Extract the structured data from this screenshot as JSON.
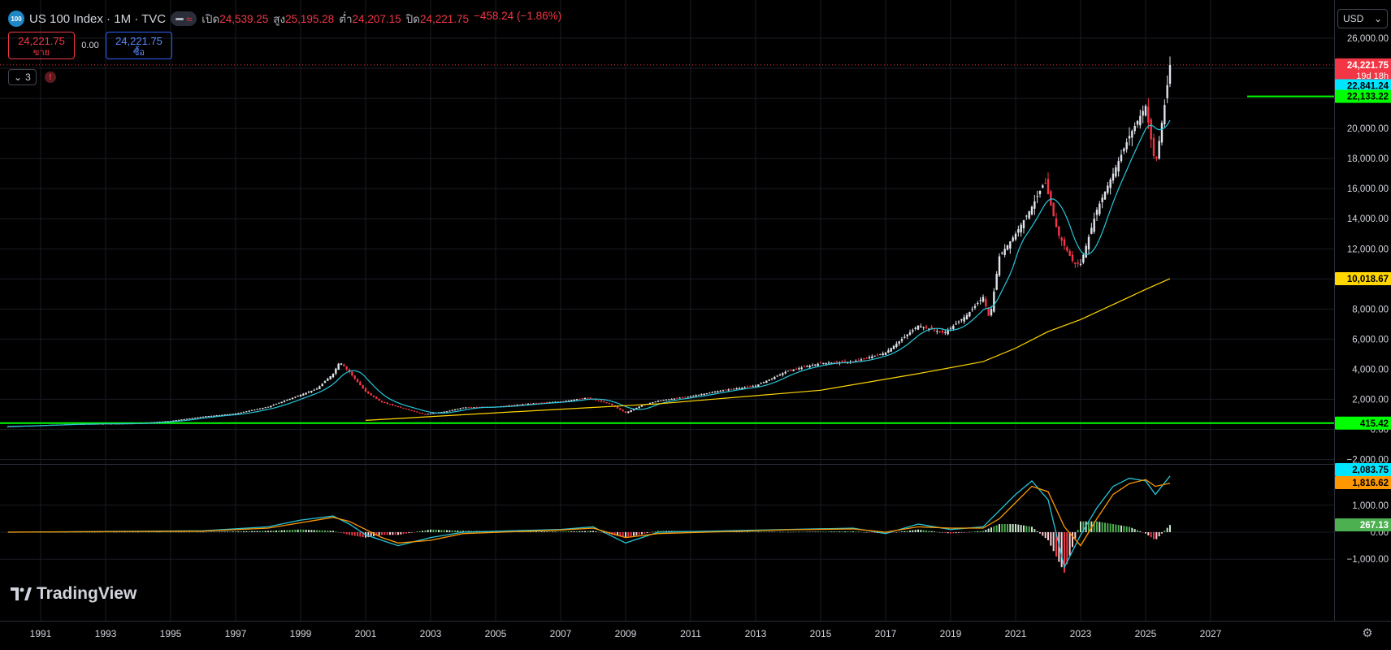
{
  "header": {
    "symbol_icon": "100",
    "title": "US 100 Index · 1M · TVC",
    "ohlc": [
      {
        "label": "เปิด",
        "value": "24,539.25"
      },
      {
        "label": "สูง",
        "value": "25,195.28"
      },
      {
        "label": "ต่ำ",
        "value": "24,207.15"
      },
      {
        "label": "ปิด",
        "value": "24,221.75"
      }
    ],
    "change": "−458.24 (−1.86%)"
  },
  "trade": {
    "sell_price": "24,221.75",
    "sell_label": "ขาย",
    "spread": "0.00",
    "buy_price": "24,221.75",
    "buy_label": "ซื้อ"
  },
  "indicators": {
    "count": "3",
    "warning": "!"
  },
  "currency": "USD",
  "logo_text": "TradingView",
  "price_scale": {
    "ticks": [
      "26,000.00",
      "24,000.00",
      "22,000.00",
      "20,000.00",
      "18,000.00",
      "16,000.00",
      "14,000.00",
      "12,000.00",
      "10,000.00",
      "8,000.00",
      "6,000.00",
      "4,000.00",
      "2,000.00",
      "0.00",
      "−2,000.00"
    ],
    "labels": [
      {
        "text": "24,221.75",
        "sub": "19d 18h",
        "color": "#f23645",
        "text_color": "#ffffff"
      },
      {
        "text": "22,841.24",
        "color": "#00e5ff",
        "text_color": "#000000"
      },
      {
        "text": "22,133.22",
        "color": "#00ff00",
        "text_color": "#000000"
      },
      {
        "text": "10,018.67",
        "color": "#ffd600",
        "text_color": "#000000"
      },
      {
        "text": "415.42",
        "color": "#00ff00",
        "text_color": "#000000"
      }
    ]
  },
  "macd_scale": {
    "ticks": [
      "1,000.00",
      "0.00",
      "−1,000.00"
    ],
    "labels": [
      {
        "text": "2,083.75",
        "color": "#00e5ff",
        "text_color": "#000000"
      },
      {
        "text": "1,816.62",
        "color": "#ff9800",
        "text_color": "#000000"
      },
      {
        "text": "267.13",
        "color": "#4caf50",
        "text_color": "#ffffff"
      }
    ]
  },
  "time_axis": [
    "1991",
    "1993",
    "1995",
    "1997",
    "1999",
    "2001",
    "2003",
    "2005",
    "2007",
    "2009",
    "2011",
    "2013",
    "2015",
    "2017",
    "2019",
    "2021",
    "2023",
    "2025",
    "2027"
  ],
  "chart_data": {
    "type": "line",
    "series": [
      {
        "x": [
          1990.0,
          1992.0,
          1994.0,
          1995.0,
          1996.0,
          1997.0,
          1998.0,
          1999.0,
          1999.5,
          2000.0,
          2000.2,
          2000.5,
          2001.0,
          2001.5,
          2002.0,
          2002.8,
          2003.5,
          2004.0,
          2005.0,
          2006.0,
          2007.0,
          2007.8,
          2008.5,
          2009.0,
          2009.5,
          2010.0,
          2011.0,
          2012.0,
          2013.0,
          2014.0,
          2015.0,
          2016.0,
          2017.0,
          2018.0,
          2018.8,
          2019.5,
          2020.0,
          2020.2,
          2020.5,
          2021.0,
          2021.5,
          2021.9,
          2022.3,
          2022.8,
          2023.0,
          2023.5,
          2024.0,
          2024.5,
          2025.0,
          2025.3,
          2025.6,
          2025.75
        ],
        "values": [
          200,
          350,
          400,
          560,
          850,
          1050,
          1500,
          2300,
          2700,
          3700,
          4500,
          3800,
          2500,
          1800,
          1500,
          1000,
          1200,
          1450,
          1500,
          1700,
          1850,
          2100,
          1700,
          1100,
          1600,
          1900,
          2200,
          2600,
          2900,
          3900,
          4400,
          4500,
          5100,
          6900,
          6400,
          7600,
          8800,
          7300,
          11500,
          13000,
          14800,
          16500,
          13000,
          11000,
          11000,
          14600,
          17000,
          19500,
          21500,
          17500,
          21800,
          24221.75
        ]
      },
      {
        "x": [
          2001.0,
          2005.0,
          2010.0,
          2015.0,
          2018.0,
          2020.0,
          2021.0,
          2022.0,
          2023.0,
          2024.0,
          2025.0,
          2025.75
        ],
        "values": [
          600,
          1100,
          1700,
          2600,
          3700,
          4500,
          5400,
          6500,
          7300,
          8300,
          9300,
          10018.67
        ]
      }
    ],
    "horizontal_lines": [
      22133.22,
      415.42
    ],
    "ylim": [
      -2000,
      26000
    ],
    "macd": {
      "x": [
        1990,
        1996,
        1998,
        1999,
        2000,
        2000.5,
        2001,
        2001.5,
        2002,
        2003,
        2004,
        2007,
        2008,
        2009,
        2010,
        2014,
        2016,
        2017,
        2018,
        2019,
        2020,
        2020.5,
        2021,
        2021.5,
        2022,
        2022.5,
        2023,
        2023.5,
        2024,
        2024.5,
        2025,
        2025.3,
        2025.75
      ],
      "macd": [
        0,
        50,
        200,
        450,
        600,
        300,
        -100,
        -300,
        -500,
        -200,
        0,
        100,
        200,
        -400,
        0,
        100,
        150,
        -50,
        300,
        100,
        200,
        800,
        1400,
        1900,
        1200,
        -1300,
        -100,
        900,
        1700,
        2000,
        1900,
        1400,
        2083.75
      ],
      "signal": [
        0,
        40,
        150,
        350,
        550,
        400,
        100,
        -200,
        -400,
        -300,
        -50,
        80,
        150,
        -200,
        -50,
        90,
        120,
        0,
        200,
        150,
        150,
        500,
        1100,
        1700,
        1500,
        200,
        -500,
        500,
        1400,
        1800,
        1950,
        1700,
        1816.62
      ],
      "histogram": [
        0,
        10,
        50,
        100,
        50,
        -100,
        -200,
        -100,
        -100,
        100,
        50,
        20,
        50,
        -200,
        50,
        10,
        30,
        -50,
        100,
        -50,
        50,
        300,
        300,
        200,
        -300,
        -1500,
        400,
        400,
        300,
        200,
        -50,
        -300,
        267.13
      ],
      "ylim": [
        -1000,
        2200
      ]
    }
  }
}
